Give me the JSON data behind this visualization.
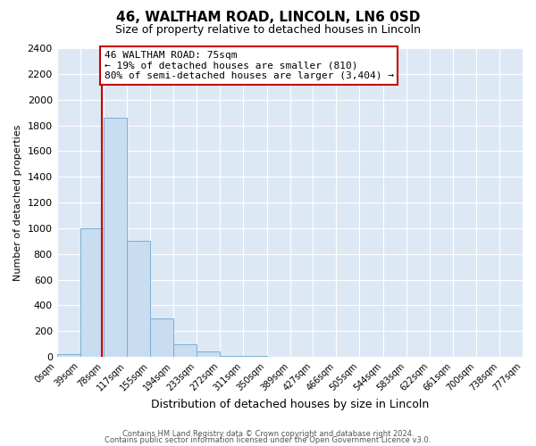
{
  "title": "46, WALTHAM ROAD, LINCOLN, LN6 0SD",
  "subtitle": "Size of property relative to detached houses in Lincoln",
  "xlabel": "Distribution of detached houses by size in Lincoln",
  "ylabel": "Number of detached properties",
  "bin_edges": [
    0,
    39,
    78,
    117,
    155,
    194,
    233,
    272,
    311,
    350,
    389,
    427,
    466,
    505,
    544,
    583,
    622,
    661,
    700,
    738,
    777
  ],
  "bin_labels": [
    "0sqm",
    "39sqm",
    "78sqm",
    "117sqm",
    "155sqm",
    "194sqm",
    "233sqm",
    "272sqm",
    "311sqm",
    "350sqm",
    "389sqm",
    "427sqm",
    "466sqm",
    "505sqm",
    "544sqm",
    "583sqm",
    "622sqm",
    "661sqm",
    "700sqm",
    "738sqm",
    "777sqm"
  ],
  "bar_heights": [
    20,
    1000,
    1860,
    900,
    300,
    100,
    40,
    10,
    5,
    2,
    2,
    1,
    1,
    0,
    0,
    0,
    0,
    0,
    0,
    0
  ],
  "bar_color": "#c9ddf0",
  "bar_edge_color": "#7aafd4",
  "property_line_x": 75,
  "property_line_color": "#cc0000",
  "annotation_title": "46 WALTHAM ROAD: 75sqm",
  "annotation_line1": "← 19% of detached houses are smaller (810)",
  "annotation_line2": "80% of semi-detached houses are larger (3,404) →",
  "annotation_box_color": "#ffffff",
  "annotation_box_edge_color": "#cc0000",
  "ylim": [
    0,
    2400
  ],
  "yticks": [
    0,
    200,
    400,
    600,
    800,
    1000,
    1200,
    1400,
    1600,
    1800,
    2000,
    2200,
    2400
  ],
  "fig_bg_color": "#ffffff",
  "plot_bg_color": "#dde8f5",
  "grid_color": "#ffffff",
  "footer1": "Contains HM Land Registry data © Crown copyright and database right 2024.",
  "footer2": "Contains public sector information licensed under the Open Government Licence v3.0."
}
